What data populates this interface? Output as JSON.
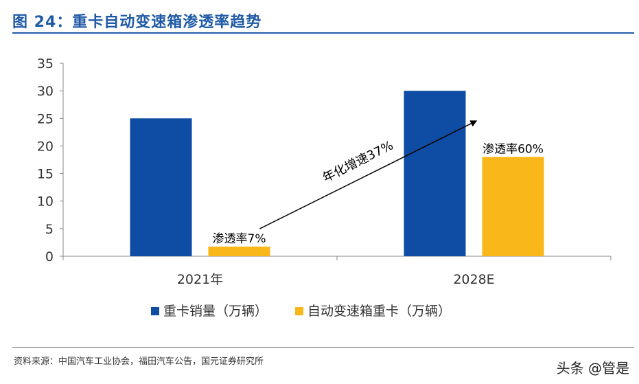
{
  "figure": {
    "title": "图 24：重卡自动变速箱渗透率趋势",
    "source": "资料来源：中国汽车工业协会，福田汽车公告，国元证券研究所",
    "watermark": "头条 @管是"
  },
  "chart_data": {
    "type": "bar",
    "categories": [
      "2021年",
      "2028E"
    ],
    "series": [
      {
        "name": "重卡销量（万辆）",
        "values": [
          25,
          30
        ],
        "color": "#0e4da3"
      },
      {
        "name": "自动变速箱重卡（万辆）",
        "values": [
          1.75,
          18
        ],
        "color": "#fab719"
      }
    ],
    "ylim": [
      0,
      35
    ],
    "yticks": [
      0,
      5,
      10,
      15,
      20,
      25,
      30,
      35
    ],
    "grid": false,
    "legend": "bottom",
    "annotations": [
      {
        "text": "渗透率7%",
        "category": "2021年"
      },
      {
        "text": "渗透率60%",
        "category": "2028E"
      },
      {
        "text": "年化增速37%"
      }
    ]
  }
}
